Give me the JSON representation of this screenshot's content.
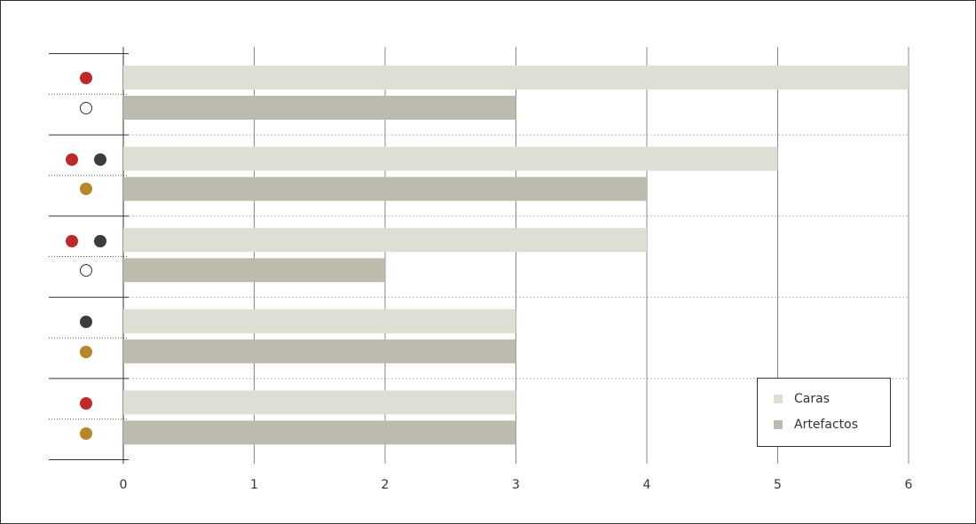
{
  "chart_data": {
    "type": "bar",
    "orientation": "horizontal",
    "categories": [
      null,
      null,
      null,
      null,
      null
    ],
    "series": [
      {
        "name": "Caras",
        "color": "#deded5",
        "values": [
          6,
          5,
          4,
          3,
          3
        ]
      },
      {
        "name": "Artefactos",
        "color": "#bdbbad",
        "values": [
          3,
          4,
          2,
          3,
          3
        ]
      }
    ],
    "xlim": [
      0,
      6
    ],
    "xticks": [
      0,
      1,
      2,
      3,
      4,
      5,
      6
    ],
    "grid": true,
    "legend": "bottom-right"
  }
}
